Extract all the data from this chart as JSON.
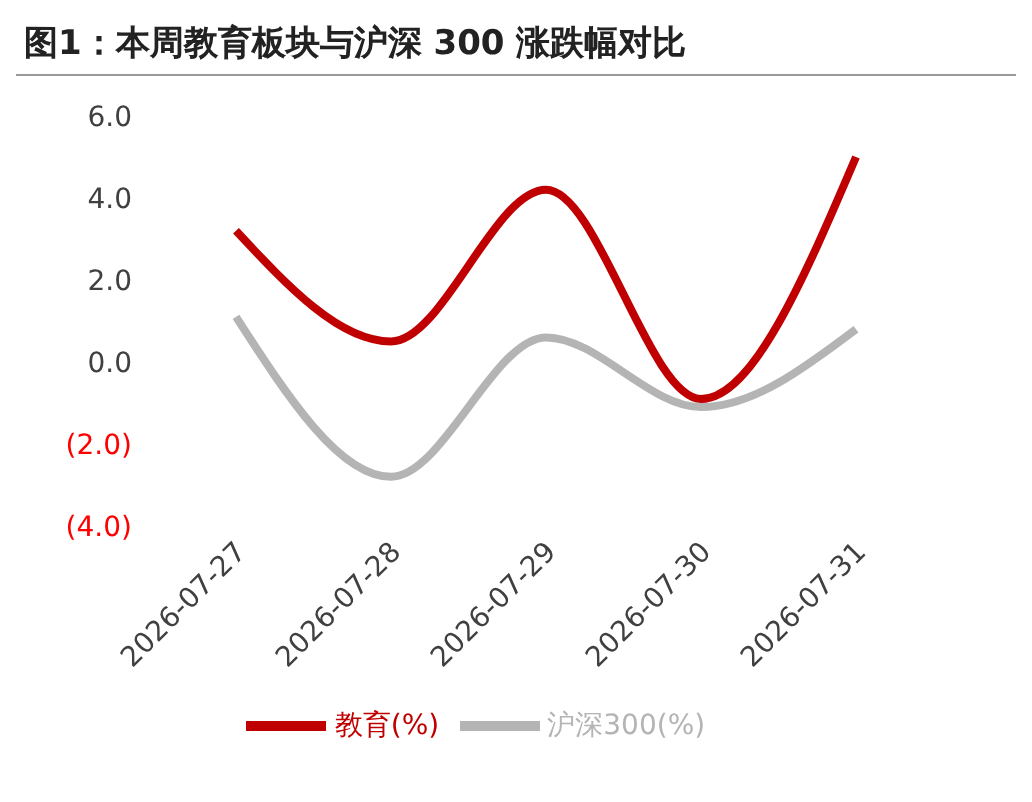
{
  "chart_data": {
    "type": "line",
    "title": "图1：本周教育板块与沪深 300 涨跌幅对比",
    "categories": [
      "2026-07-27",
      "2026-07-28",
      "2026-07-29",
      "2026-07-30",
      "2026-07-31"
    ],
    "series": [
      {
        "name": "教育(%)",
        "color": "#c00000",
        "values": [
          3.2,
          0.5,
          4.2,
          -0.9,
          5.0
        ]
      },
      {
        "name": "沪深300(%)",
        "color": "#b4b4b4",
        "values": [
          1.1,
          -2.8,
          0.6,
          -1.1,
          0.8
        ]
      }
    ],
    "ylim": [
      -4,
      6
    ],
    "yticks": [
      {
        "value": -4,
        "label": "(4.0)"
      },
      {
        "value": -2,
        "label": "(2.0)"
      },
      {
        "value": 0,
        "label": "0.0"
      },
      {
        "value": 2,
        "label": "2.0"
      },
      {
        "value": 4,
        "label": "4.0"
      },
      {
        "value": 6,
        "label": "6.0"
      }
    ],
    "grid": false,
    "legend": "bottom",
    "marker": "none",
    "line_style": "solid"
  }
}
